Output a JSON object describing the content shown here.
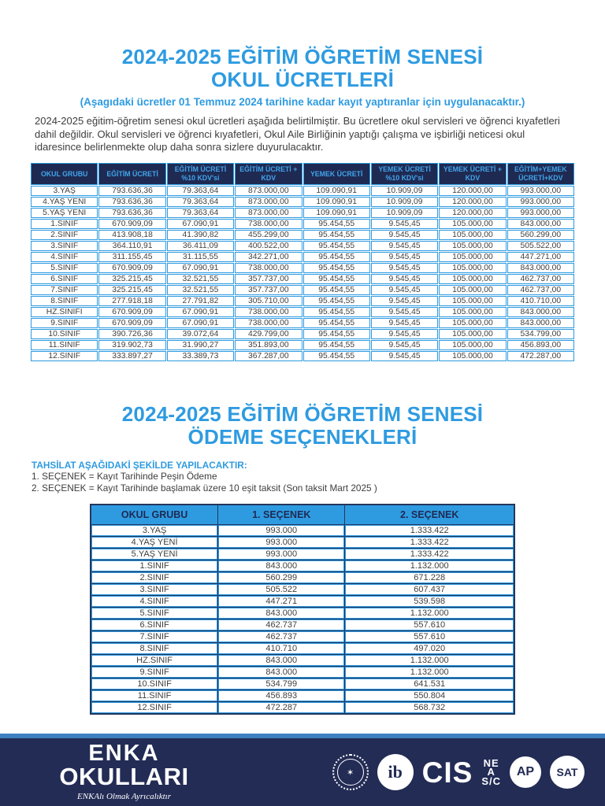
{
  "fees": {
    "title_line1": "2024-2025 EĞİTİM ÖĞRETİM SENESİ",
    "title_line2": "OKUL ÜCRETLERİ",
    "subtitle": "(Aşagıdaki ücretler 01 Temmuz 2024 tarihine kadar kayıt yaptıranlar için uygulanacaktır.)",
    "intro": "2024-2025 eğitim-öğretim senesi okul ücretleri aşağıda belirtilmiştir. Bu ücretlere okul servisleri ve öğrenci kıyafetleri dahil değildir. Okul servisleri ve öğrenci kıyafetleri, Okul Aile Birliğinin yaptığı çalışma ve işbirliği neticesi okul idaresince belirlenmekte olup daha sonra sizlere duyurulacaktır.",
    "headers": [
      "OKUL GRUBU",
      "EĞİTİM ÜCRETİ",
      "EĞİTİM ÜCRETİ %10 KDV'si",
      "EĞİTİM ÜCRETİ + KDV",
      "YEMEK ÜCRETİ",
      "YEMEK ÜCRETİ %10 KDV'si",
      "YEMEK ÜCRETİ + KDV",
      "EĞİTİM+YEMEK ÜCRETİ+KDV"
    ],
    "rows": [
      [
        "3.YAŞ",
        "793.636,36",
        "79.363,64",
        "873.000,00",
        "109.090,91",
        "10.909,09",
        "120.000,00",
        "993.000,00"
      ],
      [
        "4.YAŞ YENİ",
        "793.636,36",
        "79.363,64",
        "873.000,00",
        "109.090,91",
        "10.909,09",
        "120.000,00",
        "993.000,00"
      ],
      [
        "5.YAŞ YENİ",
        "793.636,36",
        "79.363,64",
        "873.000,00",
        "109.090,91",
        "10.909,09",
        "120.000,00",
        "993.000,00"
      ],
      [
        "1.SINIF",
        "670.909,09",
        "67.090,91",
        "738.000,00",
        "95.454,55",
        "9.545,45",
        "105.000,00",
        "843.000,00"
      ],
      [
        "2.SINIF",
        "413.908,18",
        "41.390,82",
        "455.299,00",
        "95.454,55",
        "9.545,45",
        "105.000,00",
        "560.299,00"
      ],
      [
        "3.SINIF",
        "364.110,91",
        "36.411,09",
        "400.522,00",
        "95.454,55",
        "9.545,45",
        "105.000,00",
        "505.522,00"
      ],
      [
        "4.SINIF",
        "311.155,45",
        "31.115,55",
        "342.271,00",
        "95.454,55",
        "9.545,45",
        "105.000,00",
        "447.271,00"
      ],
      [
        "5.SINIF",
        "670.909,09",
        "67.090,91",
        "738.000,00",
        "95.454,55",
        "9.545,45",
        "105.000,00",
        "843.000,00"
      ],
      [
        "6.SINIF",
        "325.215,45",
        "32.521,55",
        "357.737,00",
        "95.454,55",
        "9.545,45",
        "105.000,00",
        "462.737,00"
      ],
      [
        "7.SINIF",
        "325.215,45",
        "32.521,55",
        "357.737,00",
        "95.454,55",
        "9.545,45",
        "105.000,00",
        "462.737,00"
      ],
      [
        "8.SINIF",
        "277.918,18",
        "27.791,82",
        "305.710,00",
        "95.454,55",
        "9.545,45",
        "105.000,00",
        "410.710,00"
      ],
      [
        "HZ.SINIFI",
        "670.909,09",
        "67.090,91",
        "738.000,00",
        "95.454,55",
        "9.545,45",
        "105.000,00",
        "843.000,00"
      ],
      [
        "9.SINIF",
        "670.909,09",
        "67.090,91",
        "738.000,00",
        "95.454,55",
        "9.545,45",
        "105.000,00",
        "843.000,00"
      ],
      [
        "10.SINIF",
        "390.726,36",
        "39.072,64",
        "429.799,00",
        "95.454,55",
        "9.545,45",
        "105.000,00",
        "534.799,00"
      ],
      [
        "11.SINIF",
        "319.902,73",
        "31.990,27",
        "351.893,00",
        "95.454,55",
        "9.545,45",
        "105.000,00",
        "456.893,00"
      ],
      [
        "12.SINIF",
        "333.897,27",
        "33.389,73",
        "367.287,00",
        "95.454,55",
        "9.545,45",
        "105.000,00",
        "472.287,00"
      ]
    ]
  },
  "payments": {
    "title_line1": "2024-2025 EĞİTİM ÖĞRETİM SENESİ",
    "title_line2": "ÖDEME SEÇENEKLERİ",
    "collection_heading": "TAHSİLAT AŞAĞIDAKİ ŞEKİLDE YAPILACAKTIR:",
    "option1": "1. SEÇENEK = Kayıt Tarihinde Peşin Ödeme",
    "option2": "2. SEÇENEK = Kayıt Tarihinde başlamak üzere 10 eşit taksit (Son taksit Mart 2025 )",
    "headers": [
      "OKUL GRUBU",
      "1. SEÇENEK",
      "2. SEÇENEK"
    ],
    "rows": [
      [
        "3.YAŞ",
        "993.000",
        "1.333.422"
      ],
      [
        "4.YAŞ YENİ",
        "993.000",
        "1.333.422"
      ],
      [
        "5.YAŞ YENİ",
        "993.000",
        "1.333.422"
      ],
      [
        "1.SINIF",
        "843.000",
        "1.132.000"
      ],
      [
        "2.SINIF",
        "560.299",
        "671.228"
      ],
      [
        "3.SINIF",
        "505.522",
        "607.437"
      ],
      [
        "4.SINIF",
        "447.271",
        "539.598"
      ],
      [
        "5.SINIF",
        "843.000",
        "1.132.000"
      ],
      [
        "6.SINIF",
        "462.737",
        "557.610"
      ],
      [
        "7.SINIF",
        "462.737",
        "557.610"
      ],
      [
        "8.SINIF",
        "410.710",
        "497.020"
      ],
      [
        "HZ.SINIF",
        "843.000",
        "1.132.000"
      ],
      [
        "9.SINIF",
        "843.000",
        "1.132.000"
      ],
      [
        "10.SINIF",
        "534.799",
        "641.531"
      ],
      [
        "11.SINIF",
        "456.893",
        "550.804"
      ],
      [
        "12.SINIF",
        "472.287",
        "568.732"
      ]
    ]
  },
  "footer": {
    "brand_line1": "ENKA",
    "brand_line2": "OKULLARI",
    "tagline": "ENKAlı Olmak Ayrıcalıktır",
    "logos": {
      "ib": "ib",
      "cis": "CIS",
      "neasc": [
        "NE",
        "A",
        "S/C"
      ],
      "ap": "AP",
      "sat": "SAT"
    }
  },
  "colors": {
    "accent_blue": "#2E9BE1",
    "navy": "#232C55",
    "table_header_navy": "#1F2A52",
    "footer_stripe_blue": "#3D7FC0"
  }
}
